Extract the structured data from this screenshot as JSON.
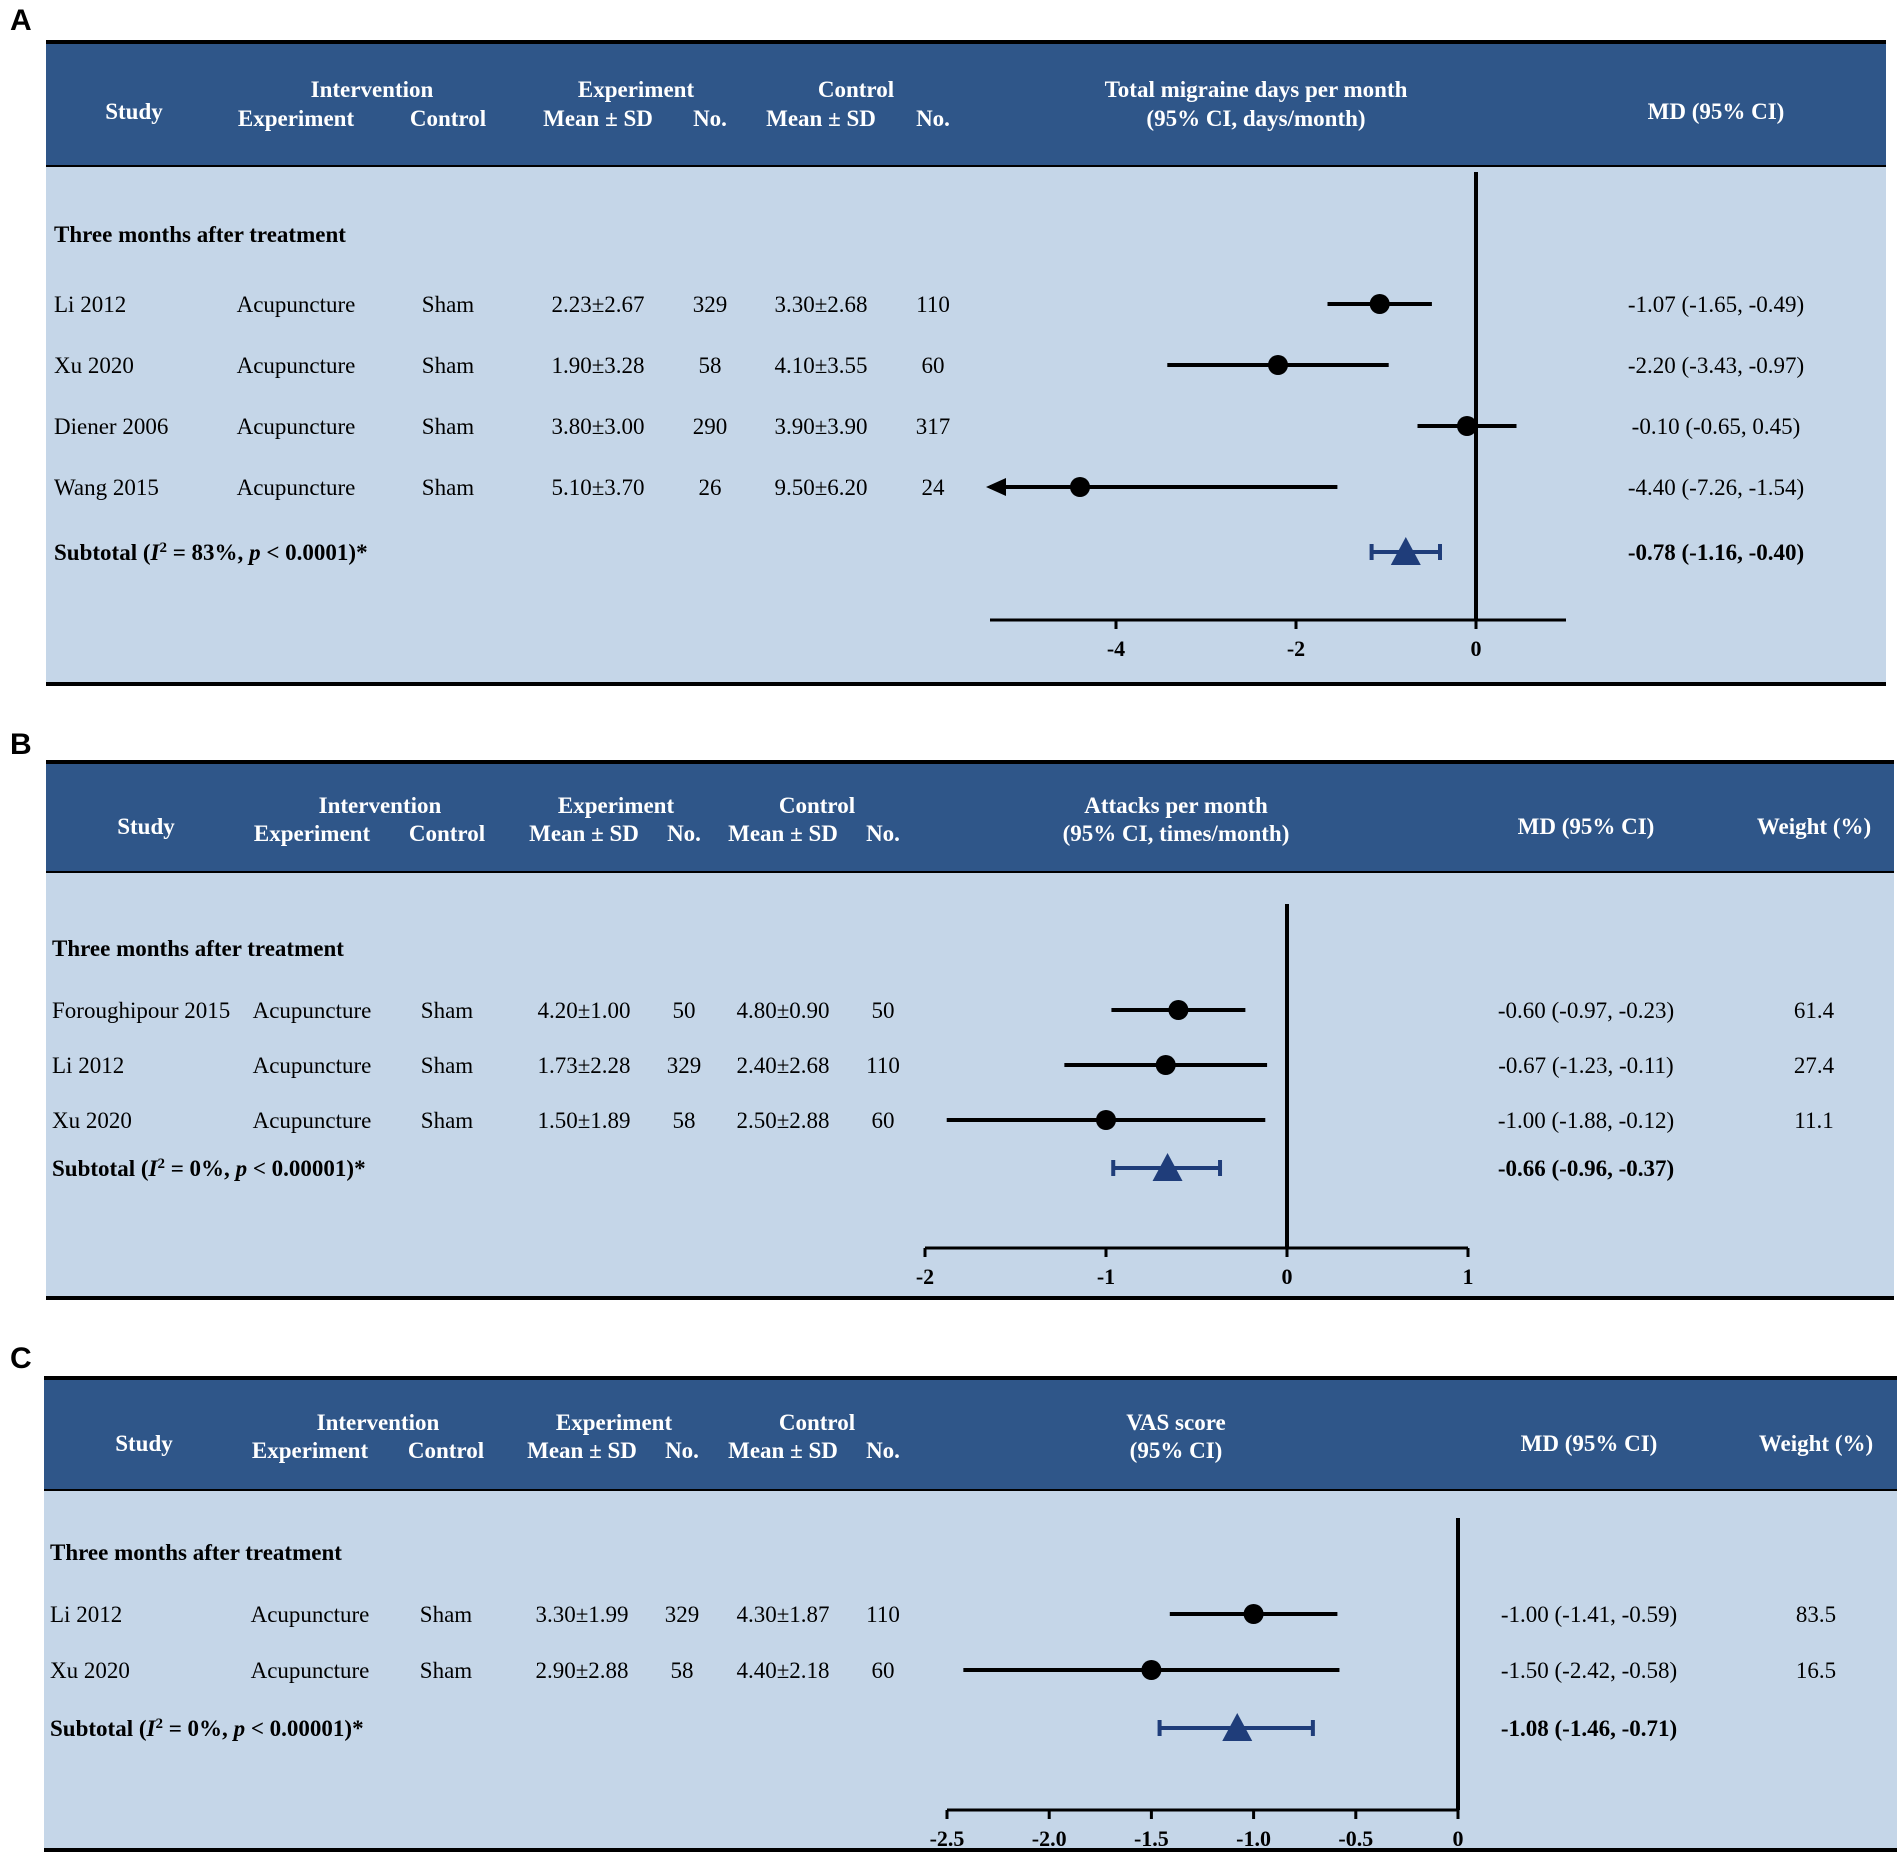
{
  "chart_data": [
    {
      "type": "forest",
      "panel_label": "A",
      "headers": {
        "study": "Study",
        "intervention": "Intervention",
        "int_experiment": "Experiment",
        "int_control": "Control",
        "experiment": "Experiment",
        "exp_mean": "Mean ± SD",
        "exp_no": "No.",
        "control": "Control",
        "ctl_mean": "Mean ± SD",
        "ctl_no": "No.",
        "plot_line1": "Total migraine days per month",
        "plot_line2": "(95% CI, days/month)",
        "md": "MD (95% CI)",
        "weight": ""
      },
      "subgroup": "Three months after treatment",
      "studies": [
        {
          "study": "Li 2012",
          "experiment": "Acupuncture",
          "control": "Sham",
          "exp_mean_sd": "2.23±2.67",
          "exp_n": "329",
          "ctl_mean_sd": "3.30±2.68",
          "ctl_n": "110",
          "md": -1.07,
          "lo": -1.65,
          "hi": -0.49,
          "md_text": "-1.07 (-1.65, -0.49)",
          "weight": ""
        },
        {
          "study": "Xu 2020",
          "experiment": "Acupuncture",
          "control": "Sham",
          "exp_mean_sd": "1.90±3.28",
          "exp_n": "58",
          "ctl_mean_sd": "4.10±3.55",
          "ctl_n": "60",
          "md": -2.2,
          "lo": -3.43,
          "hi": -0.97,
          "md_text": "-2.20 (-3.43, -0.97)",
          "weight": ""
        },
        {
          "study": "Diener 2006",
          "experiment": "Acupuncture",
          "control": "Sham",
          "exp_mean_sd": "3.80±3.00",
          "exp_n": "290",
          "ctl_mean_sd": "3.90±3.90",
          "ctl_n": "317",
          "md": -0.1,
          "lo": -0.65,
          "hi": 0.45,
          "md_text": "-0.10 (-0.65, 0.45)",
          "weight": ""
        },
        {
          "study": "Wang 2015",
          "experiment": "Acupuncture",
          "control": "Sham",
          "exp_mean_sd": "5.10±3.70",
          "exp_n": "26",
          "ctl_mean_sd": "9.50±6.20",
          "ctl_n": "24",
          "md": -4.4,
          "lo": -7.26,
          "hi": -1.54,
          "md_text": "-4.40 (-7.26, -1.54)",
          "weight": ""
        }
      ],
      "subtotal": {
        "label_pre": "Subtotal (",
        "label_i": "I",
        "label_sup": "2",
        "label_mid": " = 83%, ",
        "label_p": "p",
        "label_post": "  < 0.0001)*",
        "md": -0.78,
        "lo": -1.16,
        "hi": -0.4,
        "md_text": "-0.78 (-1.16, -0.40)"
      },
      "xlim": [
        -5.4,
        1.0
      ],
      "ticks": [
        {
          "value": -4,
          "label": "-4"
        },
        {
          "value": -2,
          "label": "-2"
        },
        {
          "value": 0,
          "label": "0"
        }
      ],
      "colors": {
        "header_bg": "#2f5689",
        "body_bg": "#c5d6e8",
        "subtotal": "#1f3d7a"
      }
    },
    {
      "type": "forest",
      "panel_label": "B",
      "headers": {
        "study": "Study",
        "intervention": "Intervention",
        "int_experiment": "Experiment",
        "int_control": "Control",
        "experiment": "Experiment",
        "exp_mean": "Mean ± SD",
        "exp_no": "No.",
        "control": "Control",
        "ctl_mean": "Mean ± SD",
        "ctl_no": "No.",
        "plot_line1": "Attacks per month",
        "plot_line2": "(95% CI, times/month)",
        "md": "MD (95% CI)",
        "weight": "Weight (%)"
      },
      "subgroup": "Three months after treatment",
      "studies": [
        {
          "study": "Foroughipour 2015",
          "experiment": "Acupuncture",
          "control": "Sham",
          "exp_mean_sd": "4.20±1.00",
          "exp_n": "50",
          "ctl_mean_sd": "4.80±0.90",
          "ctl_n": "50",
          "md": -0.6,
          "lo": -0.97,
          "hi": -0.23,
          "md_text": "-0.60 (-0.97, -0.23)",
          "weight": "61.4"
        },
        {
          "study": "Li 2012",
          "experiment": "Acupuncture",
          "control": "Sham",
          "exp_mean_sd": "1.73±2.28",
          "exp_n": "329",
          "ctl_mean_sd": "2.40±2.68",
          "ctl_n": "110",
          "md": -0.67,
          "lo": -1.23,
          "hi": -0.11,
          "md_text": "-0.67 (-1.23, -0.11)",
          "weight": "27.4"
        },
        {
          "study": "Xu 2020",
          "experiment": "Acupuncture",
          "control": "Sham",
          "exp_mean_sd": "1.50±1.89",
          "exp_n": "58",
          "ctl_mean_sd": "2.50±2.88",
          "ctl_n": "60",
          "md": -1.0,
          "lo": -1.88,
          "hi": -0.12,
          "md_text": "-1.00 (-1.88, -0.12)",
          "weight": "11.1"
        }
      ],
      "subtotal": {
        "label_pre": "Subtotal (",
        "label_i": "I",
        "label_sup": "2",
        "label_mid": " = 0%, ",
        "label_p": "p",
        "label_post": "  < 0.00001)*",
        "md": -0.66,
        "lo": -0.96,
        "hi": -0.37,
        "md_text": "-0.66 (-0.96, -0.37)"
      },
      "xlim": [
        -2,
        1
      ],
      "ticks": [
        {
          "value": -2,
          "label": "-2"
        },
        {
          "value": -1,
          "label": "-1"
        },
        {
          "value": 0,
          "label": "0"
        },
        {
          "value": 1,
          "label": "1"
        }
      ],
      "colors": {
        "header_bg": "#2f5689",
        "body_bg": "#c5d6e8",
        "subtotal": "#1f3d7a"
      }
    },
    {
      "type": "forest",
      "panel_label": "C",
      "headers": {
        "study": "Study",
        "intervention": "Intervention",
        "int_experiment": "Experiment",
        "int_control": "Control",
        "experiment": "Experiment",
        "exp_mean": "Mean ± SD",
        "exp_no": "No.",
        "control": "Control",
        "ctl_mean": "Mean ± SD",
        "ctl_no": "No.",
        "plot_line1": "VAS score",
        "plot_line2": "(95% CI)",
        "md": "MD (95% CI)",
        "weight": "Weight (%)"
      },
      "subgroup": "Three months after treatment",
      "studies": [
        {
          "study": "Li 2012",
          "experiment": "Acupuncture",
          "control": "Sham",
          "exp_mean_sd": "3.30±1.99",
          "exp_n": "329",
          "ctl_mean_sd": "4.30±1.87",
          "ctl_n": "110",
          "md": -1.0,
          "lo": -1.41,
          "hi": -0.59,
          "md_text": "-1.00 (-1.41, -0.59)",
          "weight": "83.5"
        },
        {
          "study": "Xu 2020",
          "experiment": "Acupuncture",
          "control": "Sham",
          "exp_mean_sd": "2.90±2.88",
          "exp_n": "58",
          "ctl_mean_sd": "4.40±2.18",
          "ctl_n": "60",
          "md": -1.5,
          "lo": -2.42,
          "hi": -0.58,
          "md_text": "-1.50 (-2.42, -0.58)",
          "weight": "16.5"
        }
      ],
      "subtotal": {
        "label_pre": "Subtotal (",
        "label_i": "I",
        "label_sup": "2",
        "label_mid": " = 0%, ",
        "label_p": "p",
        "label_post": "  < 0.00001)*",
        "md": -1.08,
        "lo": -1.46,
        "hi": -0.71,
        "md_text": "-1.08 (-1.46, -0.71)"
      },
      "xlim": [
        -2.5,
        0
      ],
      "ticks": [
        {
          "value": -2.5,
          "label": "-2.5"
        },
        {
          "value": -2.0,
          "label": "-2.0"
        },
        {
          "value": -1.5,
          "label": "-1.5"
        },
        {
          "value": -1.0,
          "label": "-1.0"
        },
        {
          "value": -0.5,
          "label": "-0.5"
        },
        {
          "value": 0,
          "label": "0"
        }
      ],
      "colors": {
        "header_bg": "#2f5689",
        "body_bg": "#c5d6e8",
        "subtotal": "#1f3d7a"
      }
    }
  ]
}
